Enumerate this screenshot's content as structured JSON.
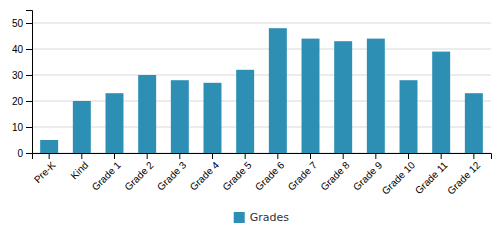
{
  "chart_data": {
    "type": "bar",
    "categories": [
      "Pre-K",
      "Kind",
      "Grade 1",
      "Grade 2",
      "Grade 3",
      "Grade 4",
      "Grade 5",
      "Grade 6",
      "Grade 7",
      "Grade 8",
      "Grade 9",
      "Grade 10",
      "Grade 11",
      "Grade 12"
    ],
    "series": [
      {
        "name": "Grades",
        "color": "#2e8fb5",
        "values": [
          5,
          20,
          23,
          30,
          28,
          27,
          32,
          48,
          44,
          43,
          44,
          28,
          39,
          23
        ]
      }
    ],
    "ylim": [
      0,
      55
    ],
    "yticks": [
      0,
      10,
      20,
      30,
      40,
      50
    ],
    "grid": true,
    "legend": "bottom"
  }
}
